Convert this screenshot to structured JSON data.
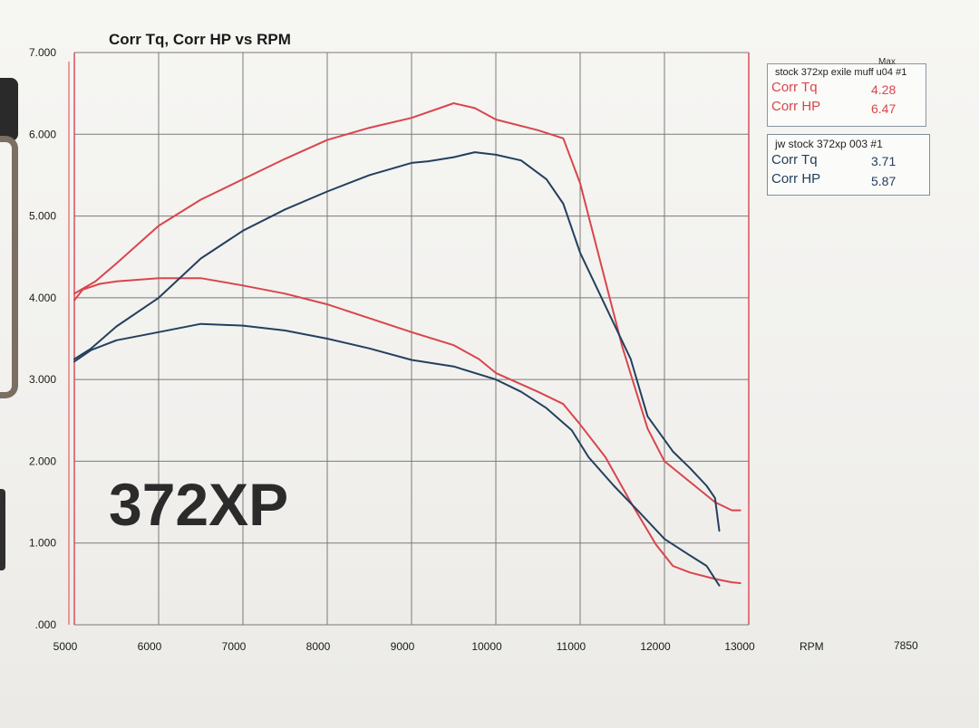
{
  "chart_data": {
    "type": "line",
    "title": "Corr Tq, Corr HP vs RPM",
    "xlabel": "RPM",
    "xlim": [
      5000,
      13000
    ],
    "ylim": [
      0,
      7
    ],
    "x_ticks": [
      "5000",
      "6000",
      "7000",
      "8000",
      "9000",
      "10000",
      "11000",
      "12000",
      "13000"
    ],
    "y_ticks": [
      ".000",
      "1.000",
      "2.000",
      "3.000",
      "4.000",
      "5.000",
      "6.000",
      "7.000"
    ],
    "corner_value": "7850",
    "overlay_text": "372XP",
    "grid": true,
    "legend_placement": "top-right",
    "colors": {
      "red": "#d9454c",
      "blue": "#23405e",
      "grid": "#7a7a7a"
    },
    "series": [
      {
        "run": "stock 372xp exile muff u04 #1",
        "metric": "Corr HP",
        "color": "#d9454c",
        "points": [
          [
            5000,
            4.05
          ],
          [
            5250,
            4.2
          ],
          [
            5500,
            4.42
          ],
          [
            6000,
            4.88
          ],
          [
            6500,
            5.2
          ],
          [
            7000,
            5.45
          ],
          [
            7500,
            5.7
          ],
          [
            8000,
            5.93
          ],
          [
            8500,
            6.08
          ],
          [
            9000,
            6.2
          ],
          [
            9500,
            6.38
          ],
          [
            9750,
            6.32
          ],
          [
            10000,
            6.18
          ],
          [
            10500,
            6.05
          ],
          [
            10800,
            5.95
          ],
          [
            11000,
            5.4
          ],
          [
            11300,
            4.2
          ],
          [
            11500,
            3.4
          ],
          [
            11800,
            2.4
          ],
          [
            12000,
            2.0
          ],
          [
            12300,
            1.75
          ],
          [
            12600,
            1.5
          ],
          [
            12800,
            1.4
          ],
          [
            12900,
            1.4
          ]
        ]
      },
      {
        "run": "stock 372xp exile muff u04 #1",
        "metric": "Corr Tq",
        "color": "#d9454c",
        "points": [
          [
            5000,
            3.97
          ],
          [
            5100,
            4.1
          ],
          [
            5300,
            4.17
          ],
          [
            5500,
            4.2
          ],
          [
            6000,
            4.24
          ],
          [
            6500,
            4.24
          ],
          [
            7000,
            4.15
          ],
          [
            7500,
            4.05
          ],
          [
            8000,
            3.92
          ],
          [
            8500,
            3.75
          ],
          [
            9000,
            3.58
          ],
          [
            9500,
            3.42
          ],
          [
            9800,
            3.25
          ],
          [
            10000,
            3.08
          ],
          [
            10500,
            2.85
          ],
          [
            10800,
            2.7
          ],
          [
            11000,
            2.45
          ],
          [
            11300,
            2.05
          ],
          [
            11600,
            1.5
          ],
          [
            11900,
            0.98
          ],
          [
            12100,
            0.72
          ],
          [
            12300,
            0.64
          ],
          [
            12600,
            0.56
          ],
          [
            12800,
            0.52
          ],
          [
            12900,
            0.51
          ]
        ]
      },
      {
        "run": "jw stock 372xp 003 #1",
        "metric": "Corr HP",
        "color": "#23405e",
        "points": [
          [
            5000,
            3.25
          ],
          [
            5200,
            3.38
          ],
          [
            5500,
            3.65
          ],
          [
            6000,
            4.0
          ],
          [
            6500,
            4.48
          ],
          [
            7000,
            4.82
          ],
          [
            7500,
            5.08
          ],
          [
            8000,
            5.3
          ],
          [
            8500,
            5.5
          ],
          [
            9000,
            5.65
          ],
          [
            9200,
            5.67
          ],
          [
            9500,
            5.72
          ],
          [
            9750,
            5.78
          ],
          [
            10000,
            5.75
          ],
          [
            10300,
            5.68
          ],
          [
            10600,
            5.45
          ],
          [
            10800,
            5.15
          ],
          [
            11000,
            4.55
          ],
          [
            11300,
            3.9
          ],
          [
            11600,
            3.25
          ],
          [
            11800,
            2.55
          ],
          [
            12100,
            2.12
          ],
          [
            12300,
            1.92
          ],
          [
            12500,
            1.7
          ],
          [
            12600,
            1.55
          ],
          [
            12650,
            1.15
          ]
        ]
      },
      {
        "run": "jw stock 372xp 003 #1",
        "metric": "Corr Tq",
        "color": "#23405e",
        "points": [
          [
            5000,
            3.22
          ],
          [
            5200,
            3.36
          ],
          [
            5500,
            3.48
          ],
          [
            6000,
            3.58
          ],
          [
            6500,
            3.68
          ],
          [
            7000,
            3.66
          ],
          [
            7500,
            3.6
          ],
          [
            8000,
            3.5
          ],
          [
            8500,
            3.38
          ],
          [
            9000,
            3.24
          ],
          [
            9500,
            3.16
          ],
          [
            10000,
            3.0
          ],
          [
            10300,
            2.85
          ],
          [
            10600,
            2.65
          ],
          [
            10900,
            2.38
          ],
          [
            11100,
            2.05
          ],
          [
            11400,
            1.7
          ],
          [
            11700,
            1.38
          ],
          [
            12000,
            1.05
          ],
          [
            12300,
            0.85
          ],
          [
            12500,
            0.72
          ],
          [
            12650,
            0.48
          ]
        ]
      }
    ]
  },
  "legend": [
    {
      "title": "stock 372xp exile muff u04  #1",
      "max_label": "Max",
      "color": "#d9454c",
      "rows": [
        {
          "label": "Corr Tq",
          "value": "4.28"
        },
        {
          "label": "Corr HP",
          "value": "6.47"
        }
      ]
    },
    {
      "title": "jw stock 372xp  003  #1",
      "color": "#23405e",
      "rows": [
        {
          "label": "Corr Tq",
          "value": "3.71"
        },
        {
          "label": "Corr HP",
          "value": "5.87"
        }
      ]
    }
  ]
}
